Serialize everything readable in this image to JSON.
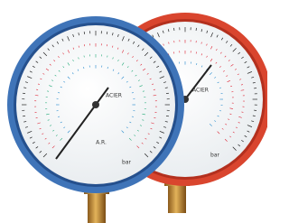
{
  "gauges": [
    {
      "brand": "ACIER",
      "mark": "A.R.",
      "unit": "bar"
    },
    {
      "brand": "ACIER",
      "unit": "bar"
    }
  ]
}
